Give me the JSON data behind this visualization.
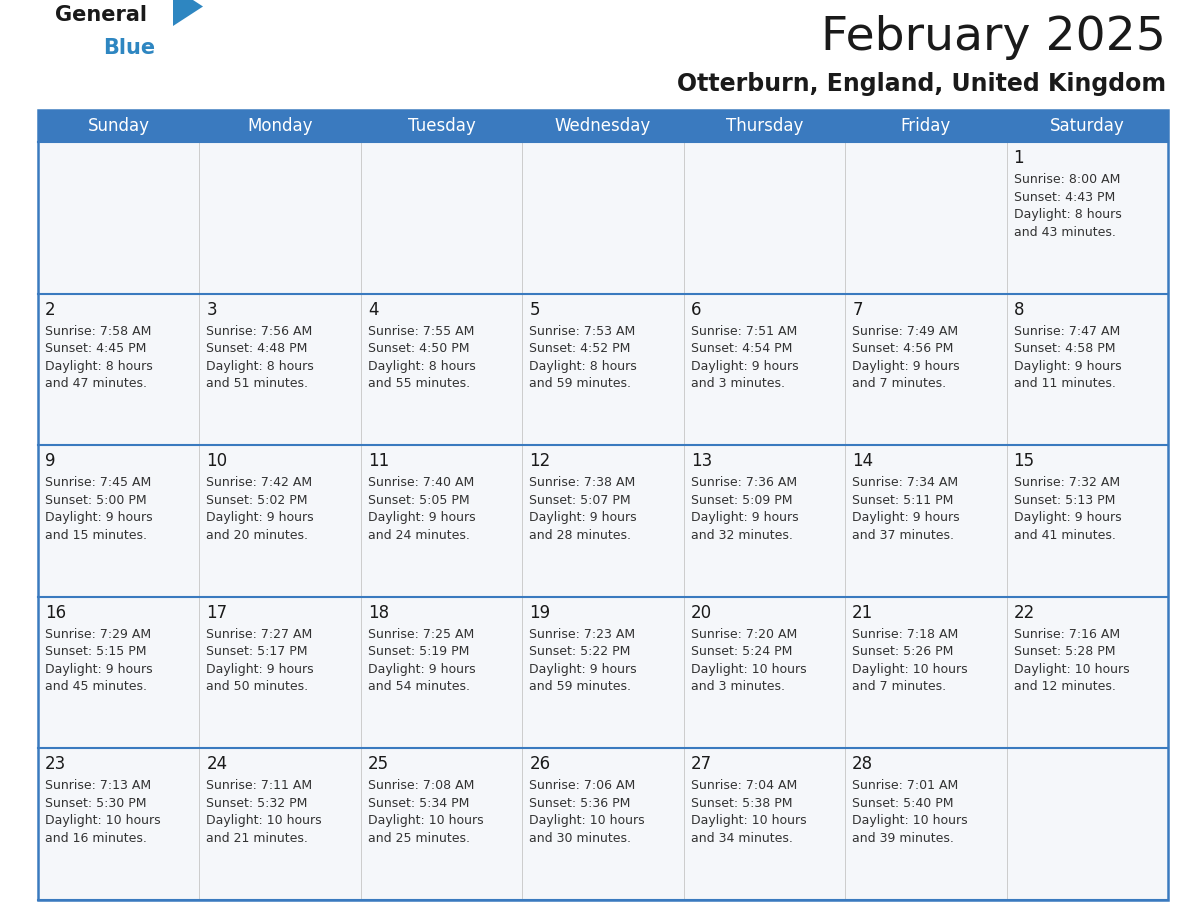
{
  "title": "February 2025",
  "subtitle": "Otterburn, England, United Kingdom",
  "header_color": "#3a7abf",
  "header_text_color": "#ffffff",
  "cell_bg": "#f5f7fa",
  "border_color": "#3a7abf",
  "separator_color": "#3a7abf",
  "vert_line_color": "#cccccc",
  "text_color": "#333333",
  "day_num_color": "#1a1a1a",
  "day_names": [
    "Sunday",
    "Monday",
    "Tuesday",
    "Wednesday",
    "Thursday",
    "Friday",
    "Saturday"
  ],
  "weeks": [
    [
      {
        "day": "",
        "info": ""
      },
      {
        "day": "",
        "info": ""
      },
      {
        "day": "",
        "info": ""
      },
      {
        "day": "",
        "info": ""
      },
      {
        "day": "",
        "info": ""
      },
      {
        "day": "",
        "info": ""
      },
      {
        "day": "1",
        "info": "Sunrise: 8:00 AM\nSunset: 4:43 PM\nDaylight: 8 hours\nand 43 minutes."
      }
    ],
    [
      {
        "day": "2",
        "info": "Sunrise: 7:58 AM\nSunset: 4:45 PM\nDaylight: 8 hours\nand 47 minutes."
      },
      {
        "day": "3",
        "info": "Sunrise: 7:56 AM\nSunset: 4:48 PM\nDaylight: 8 hours\nand 51 minutes."
      },
      {
        "day": "4",
        "info": "Sunrise: 7:55 AM\nSunset: 4:50 PM\nDaylight: 8 hours\nand 55 minutes."
      },
      {
        "day": "5",
        "info": "Sunrise: 7:53 AM\nSunset: 4:52 PM\nDaylight: 8 hours\nand 59 minutes."
      },
      {
        "day": "6",
        "info": "Sunrise: 7:51 AM\nSunset: 4:54 PM\nDaylight: 9 hours\nand 3 minutes."
      },
      {
        "day": "7",
        "info": "Sunrise: 7:49 AM\nSunset: 4:56 PM\nDaylight: 9 hours\nand 7 minutes."
      },
      {
        "day": "8",
        "info": "Sunrise: 7:47 AM\nSunset: 4:58 PM\nDaylight: 9 hours\nand 11 minutes."
      }
    ],
    [
      {
        "day": "9",
        "info": "Sunrise: 7:45 AM\nSunset: 5:00 PM\nDaylight: 9 hours\nand 15 minutes."
      },
      {
        "day": "10",
        "info": "Sunrise: 7:42 AM\nSunset: 5:02 PM\nDaylight: 9 hours\nand 20 minutes."
      },
      {
        "day": "11",
        "info": "Sunrise: 7:40 AM\nSunset: 5:05 PM\nDaylight: 9 hours\nand 24 minutes."
      },
      {
        "day": "12",
        "info": "Sunrise: 7:38 AM\nSunset: 5:07 PM\nDaylight: 9 hours\nand 28 minutes."
      },
      {
        "day": "13",
        "info": "Sunrise: 7:36 AM\nSunset: 5:09 PM\nDaylight: 9 hours\nand 32 minutes."
      },
      {
        "day": "14",
        "info": "Sunrise: 7:34 AM\nSunset: 5:11 PM\nDaylight: 9 hours\nand 37 minutes."
      },
      {
        "day": "15",
        "info": "Sunrise: 7:32 AM\nSunset: 5:13 PM\nDaylight: 9 hours\nand 41 minutes."
      }
    ],
    [
      {
        "day": "16",
        "info": "Sunrise: 7:29 AM\nSunset: 5:15 PM\nDaylight: 9 hours\nand 45 minutes."
      },
      {
        "day": "17",
        "info": "Sunrise: 7:27 AM\nSunset: 5:17 PM\nDaylight: 9 hours\nand 50 minutes."
      },
      {
        "day": "18",
        "info": "Sunrise: 7:25 AM\nSunset: 5:19 PM\nDaylight: 9 hours\nand 54 minutes."
      },
      {
        "day": "19",
        "info": "Sunrise: 7:23 AM\nSunset: 5:22 PM\nDaylight: 9 hours\nand 59 minutes."
      },
      {
        "day": "20",
        "info": "Sunrise: 7:20 AM\nSunset: 5:24 PM\nDaylight: 10 hours\nand 3 minutes."
      },
      {
        "day": "21",
        "info": "Sunrise: 7:18 AM\nSunset: 5:26 PM\nDaylight: 10 hours\nand 7 minutes."
      },
      {
        "day": "22",
        "info": "Sunrise: 7:16 AM\nSunset: 5:28 PM\nDaylight: 10 hours\nand 12 minutes."
      }
    ],
    [
      {
        "day": "23",
        "info": "Sunrise: 7:13 AM\nSunset: 5:30 PM\nDaylight: 10 hours\nand 16 minutes."
      },
      {
        "day": "24",
        "info": "Sunrise: 7:11 AM\nSunset: 5:32 PM\nDaylight: 10 hours\nand 21 minutes."
      },
      {
        "day": "25",
        "info": "Sunrise: 7:08 AM\nSunset: 5:34 PM\nDaylight: 10 hours\nand 25 minutes."
      },
      {
        "day": "26",
        "info": "Sunrise: 7:06 AM\nSunset: 5:36 PM\nDaylight: 10 hours\nand 30 minutes."
      },
      {
        "day": "27",
        "info": "Sunrise: 7:04 AM\nSunset: 5:38 PM\nDaylight: 10 hours\nand 34 minutes."
      },
      {
        "day": "28",
        "info": "Sunrise: 7:01 AM\nSunset: 5:40 PM\nDaylight: 10 hours\nand 39 minutes."
      },
      {
        "day": "",
        "info": ""
      }
    ]
  ],
  "logo_color_general": "#1a1a1a",
  "logo_color_blue": "#2e86c1",
  "title_fontsize": 34,
  "subtitle_fontsize": 17,
  "day_name_fontsize": 12,
  "day_number_fontsize": 12,
  "info_fontsize": 9.0,
  "fig_width": 11.88,
  "fig_height": 9.18,
  "dpi": 100
}
